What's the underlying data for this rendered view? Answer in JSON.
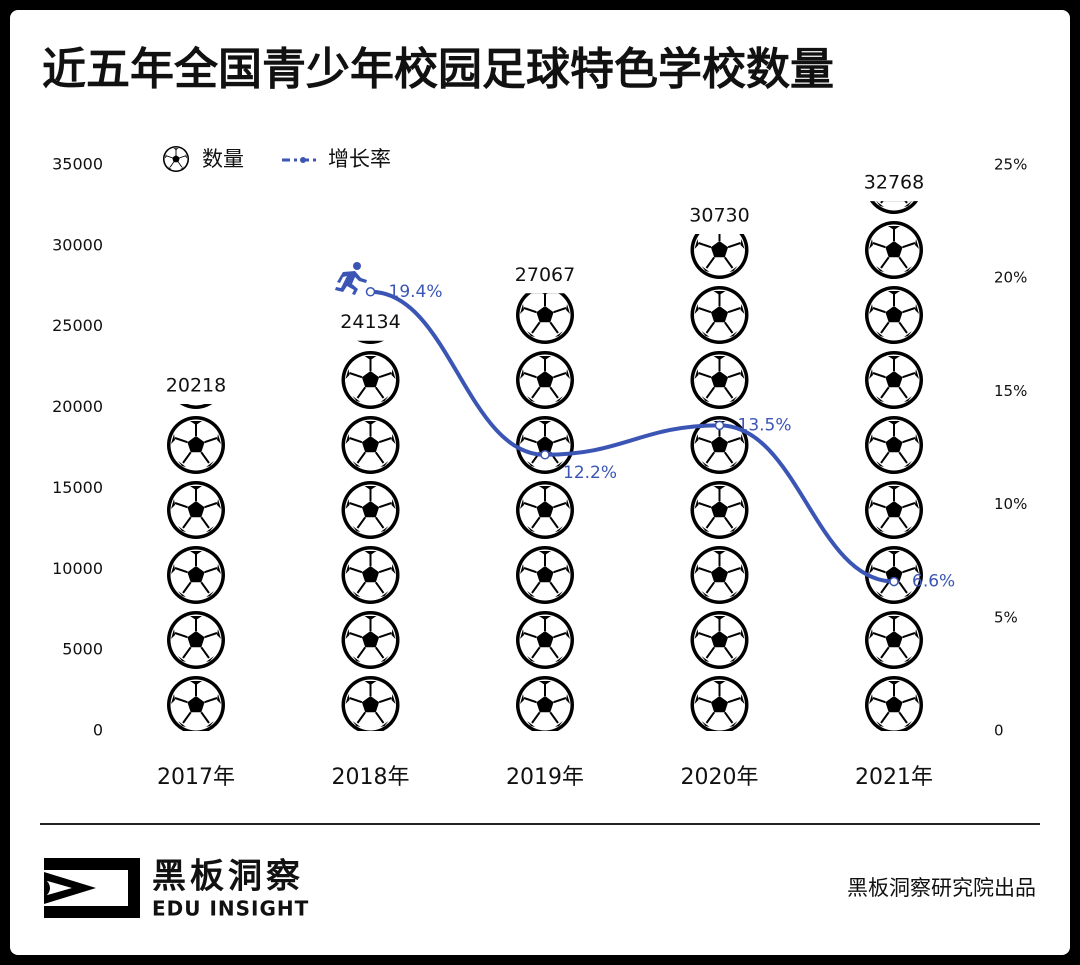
{
  "chart_data": {
    "type": "bar",
    "title": "近五年全国青少年校园足球特色学校数量",
    "categories": [
      "2017年",
      "2018年",
      "2019年",
      "2020年",
      "2021年"
    ],
    "series": [
      {
        "name": "数量",
        "color": "#000000",
        "values": [
          20218,
          24134,
          27067,
          30730,
          32768
        ]
      },
      {
        "name": "增长率",
        "color": "#3b55b5",
        "axis": "y2",
        "values": [
          null,
          19.4,
          12.2,
          13.5,
          6.6
        ],
        "value_labels": [
          null,
          "19.4%",
          "12.2%",
          "13.5%",
          "6.6%"
        ]
      }
    ],
    "ylim": [
      0,
      35000
    ],
    "yticks": [
      0,
      5000,
      10000,
      15000,
      20000,
      25000,
      30000,
      35000
    ],
    "y2lim": [
      0,
      25
    ],
    "y2ticks": [
      {
        "value": 0,
        "label": "0"
      },
      {
        "value": 5,
        "label": "5%"
      },
      {
        "value": 10,
        "label": "10%"
      },
      {
        "value": 15,
        "label": "15%"
      },
      {
        "value": 20,
        "label": "20%"
      },
      {
        "value": 25,
        "label": "25%"
      }
    ],
    "legend": "top-left"
  },
  "footer": {
    "brand": "黑板洞察",
    "brand_en": "EDU INSIGHT",
    "credit": "黑板洞察研究院出品"
  }
}
